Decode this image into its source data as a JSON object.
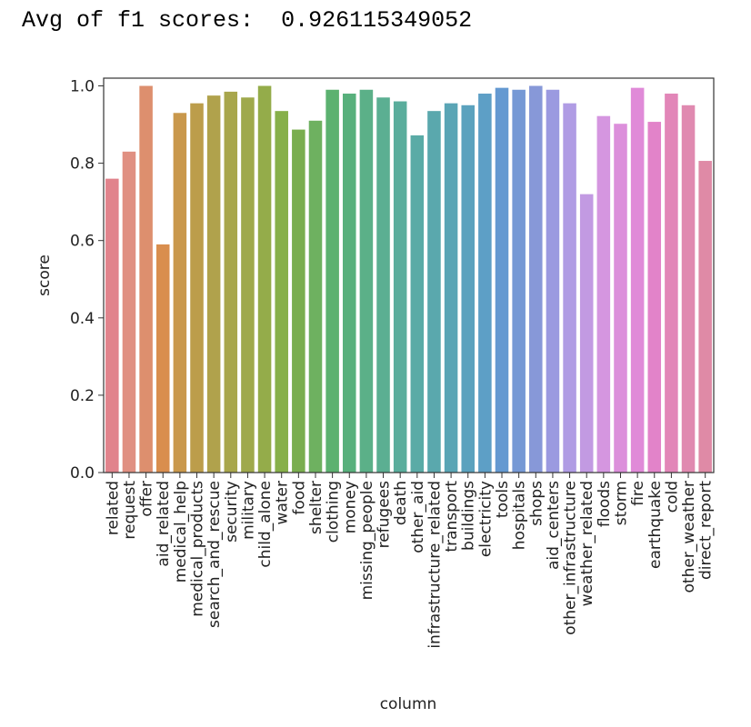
{
  "output": {
    "label": "Avg of f1 scores:",
    "value": "0.926115349052"
  },
  "chart_data": {
    "type": "bar",
    "xlabel": "column",
    "ylabel": "score",
    "ylim": [
      0,
      1.02
    ],
    "yticks": [
      "0.0",
      "0.2",
      "0.4",
      "0.6",
      "0.8",
      "1.0"
    ],
    "grid": false,
    "categories": [
      "related",
      "request",
      "offer",
      "aid_related",
      "medical_help",
      "medical_products",
      "search_and_rescue",
      "security",
      "military",
      "child_alone",
      "water",
      "food",
      "shelter",
      "clothing",
      "money",
      "missing_people",
      "refugees",
      "death",
      "other_aid",
      "infrastructure_related",
      "transport",
      "buildings",
      "electricity",
      "tools",
      "hospitals",
      "shops",
      "aid_centers",
      "other_infrastructure",
      "weather_related",
      "floods",
      "storm",
      "fire",
      "earthquake",
      "cold",
      "other_weather",
      "direct_report"
    ],
    "values": [
      0.76,
      0.83,
      1.0,
      0.59,
      0.93,
      0.955,
      0.975,
      0.985,
      0.97,
      1.0,
      0.935,
      0.887,
      0.91,
      0.99,
      0.98,
      0.99,
      0.97,
      0.96,
      0.872,
      0.935,
      0.955,
      0.95,
      0.98,
      0.995,
      0.99,
      1.0,
      0.99,
      0.955,
      0.72,
      0.922,
      0.902,
      0.995,
      0.907,
      0.98,
      0.95,
      0.806
    ],
    "colors": [
      "#e1838c",
      "#e09082",
      "#dd8f6e",
      "#d98e4e",
      "#c9984c",
      "#bc9d4b",
      "#b0a24c",
      "#a8a64c",
      "#9fa94c",
      "#94ac4a",
      "#87b04a",
      "#7aae4f",
      "#6eb160",
      "#5cb170",
      "#58b07c",
      "#5bb088",
      "#5baf92",
      "#5aad9c",
      "#5aaba6",
      "#5aa8ad",
      "#5aa5b5",
      "#5ba2be",
      "#5d9fc6",
      "#6499d1",
      "#7699d5",
      "#8798d8",
      "#9b9ae0",
      "#b09ce4",
      "#c29ae2",
      "#d596e0",
      "#dc8fdb",
      "#e08ad8",
      "#e283c9",
      "#e286b8",
      "#e08ab0",
      "#df8aa6"
    ]
  }
}
